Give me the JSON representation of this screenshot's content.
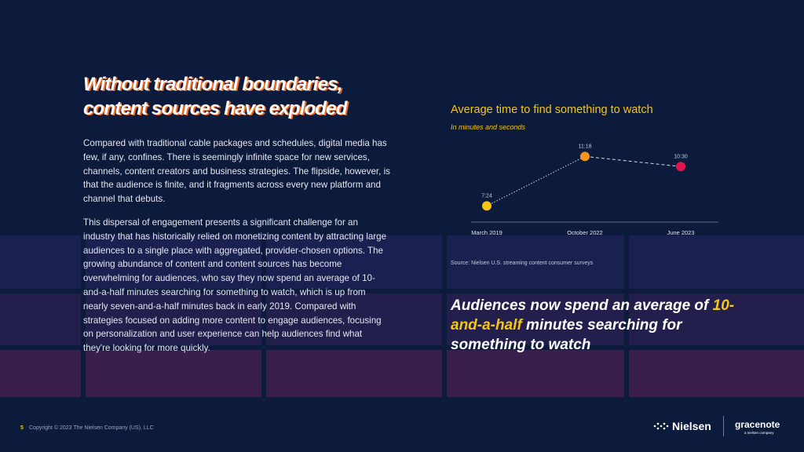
{
  "colors": {
    "background": "#0c1a3c",
    "accent_yellow": "#f5c518",
    "accent_orange": "#f7941d",
    "accent_pink": "#e6144d",
    "tile_purple": "#3a1e4e"
  },
  "title": {
    "line1": "Without traditional boundaries,",
    "line2": "content sources have exploded"
  },
  "body": {
    "p1": "Compared with traditional cable packages and schedules, digital media has few, if any, confines. There is seemingly infinite space for new services, channels, content creators and business strategies. The flipside, however, is that the audience is finite, and it fragments across every new platform and channel that debuts.",
    "p2": "This dispersal of engagement presents a significant challenge for an industry that has historically relied on monetizing content by attracting large audiences to a single place with aggregated, provider-chosen options. The growing abundance of content and content sources has become overwhelming for audiences, who say they now spend an average of 10-and-a-half minutes searching for something to watch, which is up from nearly seven-and-a-half minutes back in early 2019. Compared with strategies focused on adding more content to engage audiences, focusing on personalization and user experience can help audiences find what they're looking for more quickly."
  },
  "chart_data": {
    "type": "line",
    "title": "Average time to find something to watch",
    "subtitle": "In minutes and seconds",
    "categories": [
      "March 2019",
      "October 2022",
      "June 2023"
    ],
    "values_minutes": [
      7.4,
      11.3,
      10.5
    ],
    "data_labels": [
      "7:24",
      "11:18",
      "10:30"
    ],
    "point_colors": [
      "#f5c518",
      "#f7941d",
      "#e6144d"
    ],
    "ylim": [
      6,
      12
    ],
    "grid": false,
    "source": "Source: Nielsen U.S. streaming content consumer surveys"
  },
  "callout": {
    "before": "Audiences now spend an average of ",
    "highlight": "10-and-a-half",
    "after": " minutes searching for something to watch"
  },
  "footer": {
    "page": "5",
    "copyright": "Copyright © 2023 The Nielsen Company (US), LLC"
  },
  "logos": {
    "nielsen": "Nielsen",
    "gracenote": "gracenote",
    "gracenote_sub": "a nielsen company"
  }
}
